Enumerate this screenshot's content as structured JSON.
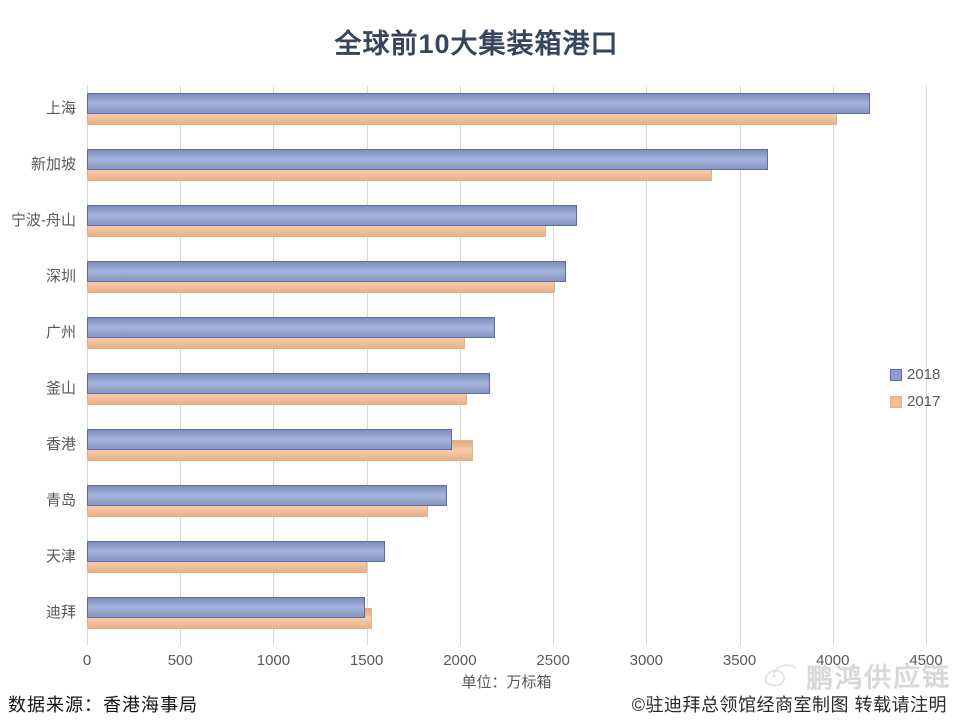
{
  "title": "全球前10大集装箱港口",
  "chart_data": {
    "type": "bar",
    "orientation": "horizontal",
    "title": "全球前10大集装箱港口",
    "categories": [
      "上海",
      "新加坡",
      "宁波-舟山",
      "深圳",
      "广州",
      "釜山",
      "香港",
      "青岛",
      "天津",
      "迪拜"
    ],
    "series": [
      {
        "name": "2018",
        "fill": "#8C9DD1",
        "border": "#5B6DA5",
        "values": [
          4200,
          3650,
          2630,
          2570,
          2190,
          2160,
          1960,
          1930,
          1600,
          1490
        ]
      },
      {
        "name": "2017",
        "fill": "#F5BC92",
        "border": "#EDAF85",
        "values": [
          4020,
          3350,
          2460,
          2510,
          2030,
          2040,
          2070,
          1830,
          1500,
          1530
        ]
      }
    ],
    "xlim": [
      0,
      4500
    ],
    "xticks": [
      0,
      500,
      1000,
      1500,
      2000,
      2500,
      3000,
      3500,
      4000,
      4500
    ],
    "x_unit_label": "单位：万标箱",
    "grid": "vertical",
    "legend_position": "right"
  },
  "footer": {
    "source": "数据来源：香港海事局",
    "credit": "©驻迪拜总领馆经商室制图 转载请注明"
  },
  "watermark": {
    "text": "鹏鸿供应链"
  },
  "colors": {
    "title_text": "#37465D",
    "axis_text": "#595959",
    "gridline": "#D9D9D9",
    "series_2018_fill": "#8C9DD1",
    "series_2018_border": "#5B6DA5",
    "series_2017_fill": "#F5BC92",
    "series_2017_border": "#EDAF85"
  }
}
